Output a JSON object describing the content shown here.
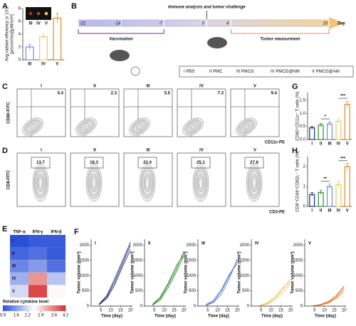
{
  "panel_labels": [
    "A",
    "B",
    "C",
    "D",
    "E",
    "F",
    "G",
    "H"
  ],
  "timeline": {
    "title": "Immune analysis and tumor challenge",
    "days": [
      -21,
      -14,
      -7,
      0,
      4,
      20
    ],
    "unit": "Day",
    "vaccination": "Vaccination",
    "measurement": "Tumor measurment",
    "groups": [
      "I PBS",
      "II PMC",
      "III PMCG",
      "IV PMCG@NM",
      "V PMCG@AM"
    ]
  },
  "flow": [
    {
      "ylabel": "CD80-FITC",
      "xlabel": "CD11c-PE",
      "titles": [
        "I",
        "II",
        "III",
        "IV",
        "V"
      ],
      "values": [
        "0.4",
        "2.3",
        "5.5",
        "7.3",
        "9.4"
      ],
      "value_colors": [
        "#1f2a7a",
        "#2e8b2e",
        "#6a8fd8",
        "#e8c86a",
        "#e08a2a"
      ]
    },
    {
      "ylabel": "CD8-FITC",
      "xlabel": "CD3-PE",
      "titles": [
        "I",
        "II",
        "III",
        "IV",
        "V"
      ],
      "values": [
        "13.7",
        "18.3",
        "22.4",
        "25.1",
        "27.8"
      ],
      "value_colors": [
        "#1f2a7a",
        "#2e8b2e",
        "#6a8fd8",
        "#e8c86a",
        "#e08a2a"
      ]
    }
  ],
  "chart_data": [
    {
      "type": "bar",
      "ylabel": "Avg radiant efficiency (x 10⁷)",
      "ylabel2": "[p/s/cm²/sr]/[μW/cm²]",
      "inset_labels": [
        "III",
        "IV",
        "V"
      ],
      "categories": [
        "III",
        "IV",
        "V"
      ],
      "values": [
        2.0,
        3.6,
        6.5
      ],
      "errors": [
        0.4,
        0.4,
        0.7
      ],
      "colors": [
        "#6a8fd8",
        "#e8c86a",
        "#e08a2a"
      ],
      "ylim": [
        0,
        8
      ],
      "yticks": [
        0,
        2,
        4,
        6,
        8
      ]
    },
    {
      "type": "bar",
      "ylabel": "CD80⁺CD11c⁺ T cells (%)",
      "categories": [
        "I",
        "II",
        "III",
        "IV",
        "V"
      ],
      "values": [
        0.45,
        0.55,
        0.6,
        0.7,
        1.35
      ],
      "errors": [
        0.05,
        0.06,
        0.08,
        0.1,
        0.12
      ],
      "colors": [
        "#1f2a7a",
        "#2e8b2e",
        "#6a8fd8",
        "#e8c86a",
        "#e08a2a"
      ],
      "ylim": [
        0,
        1.8
      ],
      "yticks": [
        {
          "value": 0,
          "label": "0.0"
        },
        {
          "value": 0.5,
          "label": "0.5"
        },
        {
          "value": 1,
          "label": "1.0"
        },
        {
          "value": 1.5,
          "label": "1.5"
        }
      ],
      "annotations": [
        {
          "text": "*",
          "from": 1,
          "to": 2
        },
        {
          "text": "***",
          "from": 3,
          "to": 4
        }
      ]
    },
    {
      "type": "bar",
      "ylabel": "CD8⁺CD44⁺CD62L⁻ T cells (%)",
      "categories": [
        "I",
        "II",
        "III",
        "IV",
        "V"
      ],
      "values": [
        0.6,
        0.7,
        1.0,
        1.1,
        2.0
      ],
      "errors": [
        0.1,
        0.1,
        0.12,
        0.15,
        0.15
      ],
      "colors": [
        "#1f2a7a",
        "#2e8b2e",
        "#6a8fd8",
        "#e8c86a",
        "#e08a2a"
      ],
      "ylim": [
        0,
        2.5
      ],
      "yticks": [
        0,
        1,
        2
      ],
      "annotations": [
        {
          "text": "**",
          "from": 1,
          "to": 2
        },
        {
          "text": "***",
          "from": 3,
          "to": 4
        }
      ]
    },
    {
      "type": "heatmap",
      "columns": [
        "TNF-α",
        "IFN-γ",
        "IFN-β"
      ],
      "rows": [
        "I",
        "II",
        "III",
        "IV",
        "V"
      ],
      "values": [
        [
          0.9,
          1.0,
          1.0
        ],
        [
          1.1,
          1.2,
          1.0
        ],
        [
          1.4,
          1.6,
          1.2
        ],
        [
          1.8,
          3.4,
          2.0
        ],
        [
          2.2,
          4.0,
          2.6
        ]
      ],
      "colormap": [
        "#2b50d8",
        "#ffffff",
        "#d62f2f"
      ],
      "vlim": [
        0.9,
        4.2
      ],
      "colorbar_label": "Relative cytokine level",
      "colorbar_ticks": [
        0.9,
        1.6,
        2.2,
        2.9,
        3.6,
        4.2
      ]
    },
    {
      "type": "line",
      "title": "I",
      "color": "#1f2a7a",
      "xlabel": "Time (day)",
      "ylabel": "Tumor volume (mm³)",
      "x": [
        4,
        8,
        12,
        16,
        20
      ],
      "xlim": [
        0,
        21
      ],
      "xticks": [
        5,
        10,
        15,
        20
      ],
      "ylim": [
        0,
        2200
      ],
      "yticks": [
        0,
        500,
        1000,
        1500,
        2000
      ],
      "series": [
        {
          "values": [
            50,
            300,
            800,
            1400,
            2000
          ]
        },
        {
          "values": [
            40,
            250,
            700,
            1300,
            1850
          ]
        },
        {
          "values": [
            60,
            350,
            900,
            1500,
            2100
          ]
        }
      ]
    },
    {
      "type": "line",
      "title": "II",
      "color": "#2e8b2e",
      "xlabel": "Time (day)",
      "ylabel": "Tumor volume (mm³)",
      "x": [
        4,
        8,
        12,
        16,
        20
      ],
      "xlim": [
        0,
        21
      ],
      "xticks": [
        5,
        10,
        15,
        20
      ],
      "ylim": [
        0,
        2200
      ],
      "yticks": [
        0,
        500,
        1000,
        1500,
        2000
      ],
      "series": [
        {
          "values": [
            40,
            250,
            700,
            1200,
            1800
          ]
        },
        {
          "values": [
            50,
            300,
            750,
            1300,
            1700
          ]
        },
        {
          "values": [
            30,
            200,
            600,
            1100,
            1650
          ]
        }
      ]
    },
    {
      "type": "line",
      "title": "III",
      "color": "#5b7fd0",
      "xlabel": "Time (day)",
      "ylabel": "Tumor volume (mm³)",
      "x": [
        4,
        8,
        12,
        16,
        20
      ],
      "xlim": [
        0,
        21
      ],
      "xticks": [
        5,
        10,
        15,
        20
      ],
      "ylim": [
        0,
        2200
      ],
      "yticks": [
        0,
        500,
        1000,
        1500,
        2000
      ],
      "series": [
        {
          "values": [
            30,
            150,
            500,
            1000,
            1500
          ]
        },
        {
          "values": [
            40,
            200,
            550,
            1050,
            1400
          ]
        },
        {
          "values": [
            20,
            120,
            400,
            900,
            1550
          ]
        }
      ]
    },
    {
      "type": "line",
      "title": "IV",
      "color": "#eec565",
      "xlabel": "Time (day)",
      "ylabel": "Tumor volume (mm³)",
      "x": [
        4,
        8,
        12,
        16,
        20
      ],
      "xlim": [
        0,
        21
      ],
      "xticks": [
        5,
        10,
        15,
        20
      ],
      "ylim": [
        0,
        2200
      ],
      "yticks": [
        0,
        500,
        1000,
        1500,
        2000
      ],
      "series": [
        {
          "values": [
            20,
            80,
            250,
            550,
            900
          ]
        },
        {
          "values": [
            20,
            100,
            300,
            600,
            800
          ]
        },
        {
          "values": [
            10,
            60,
            200,
            450,
            750
          ]
        }
      ]
    },
    {
      "type": "line",
      "title": "V",
      "color": "#e07020",
      "xlabel": "Time (day)",
      "ylabel": "Tumor volume (mm³)",
      "x": [
        4,
        8,
        12,
        16,
        20
      ],
      "xlim": [
        0,
        21
      ],
      "xticks": [
        5,
        10,
        15,
        20
      ],
      "ylim": [
        0,
        2200
      ],
      "yticks": [
        0,
        500,
        1000,
        1500,
        2000
      ],
      "series": [
        {
          "values": [
            10,
            40,
            120,
            300,
            600
          ]
        },
        {
          "values": [
            10,
            50,
            150,
            350,
            650
          ]
        },
        {
          "values": [
            5,
            30,
            100,
            250,
            500
          ]
        }
      ]
    }
  ]
}
